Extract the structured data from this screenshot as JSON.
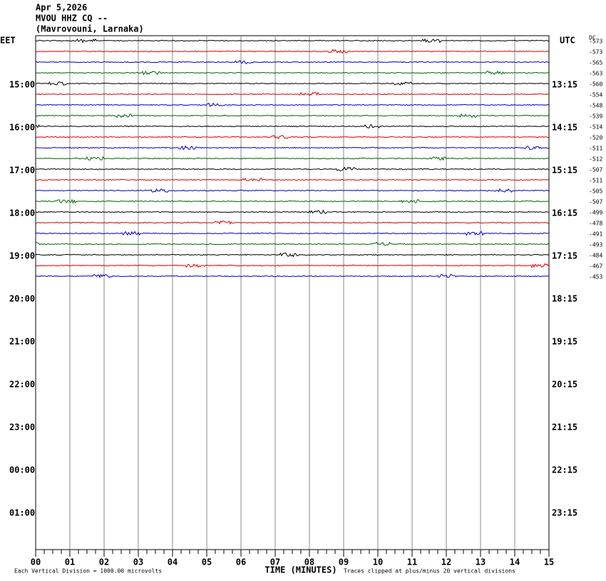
{
  "header": {
    "date": "Apr 5,2026",
    "station": "MVOU HHZ CQ --",
    "location": "(Mavrovouni, Larnaka)"
  },
  "left_zone": "EET",
  "right_zone": "UTC",
  "dc_header": "DC",
  "left_times": [
    "15:00",
    "16:00",
    "17:00",
    "18:00",
    "19:00",
    "20:00",
    "21:00",
    "22:00",
    "23:00",
    "00:00",
    "01:00"
  ],
  "right_times": [
    "13:15",
    "14:15",
    "15:15",
    "16:15",
    "17:15",
    "18:15",
    "19:15",
    "20:15",
    "21:15",
    "22:15",
    "23:15"
  ],
  "dc_offsets": [
    "-573",
    "-573",
    "-565",
    "-563",
    "-560",
    "-554",
    "-548",
    "-539",
    "-514",
    "-520",
    "-511",
    "-512",
    "-507",
    "-511",
    "-505",
    "-507",
    "-499",
    "-478",
    "-491",
    "-493",
    "-484",
    "-467",
    "-453"
  ],
  "x_labels": [
    "00",
    "01",
    "02",
    "03",
    "04",
    "05",
    "06",
    "07",
    "08",
    "09",
    "10",
    "11",
    "12",
    "13",
    "14",
    "15"
  ],
  "footer": {
    "scale": "Each Vertical Division = 1000.00 microvolts",
    "axis_title": "TIME (MINUTES)",
    "clip_note": "Traces clipped at plus/minus 20 vertical divisions"
  }
}
